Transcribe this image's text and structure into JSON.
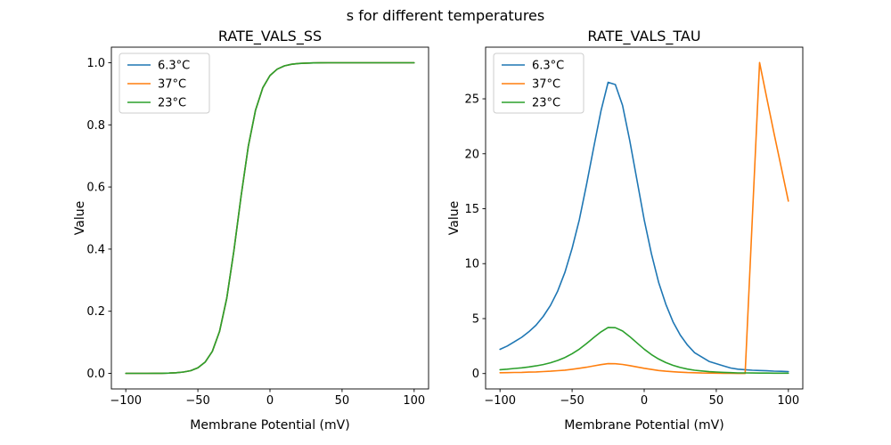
{
  "figure_title": "s for different temperatures",
  "colors": {
    "blue": "#1f77b4",
    "orange": "#ff7f0e",
    "green": "#2ca02c"
  },
  "chart_data": [
    {
      "type": "line",
      "title": "RATE_VALS_SS",
      "xlabel": "Membrane Potential (mV)",
      "ylabel": "Value",
      "xlim": [
        -110,
        110
      ],
      "ylim": [
        -0.05,
        1.05
      ],
      "xticks": [
        -100,
        -50,
        0,
        50,
        100
      ],
      "xticklabels": [
        "−100",
        "−50",
        "0",
        "50",
        "100"
      ],
      "yticks": [
        0.0,
        0.2,
        0.4,
        0.6,
        0.8,
        1.0
      ],
      "yticklabels": [
        "0.0",
        "0.2",
        "0.4",
        "0.6",
        "0.8",
        "1.0"
      ],
      "legend_position": "upper-left",
      "grid": false,
      "note": "All three temperature curves overlap exactly (identical sigmoid); green drawn last is visible",
      "x": [
        -100,
        -95,
        -90,
        -85,
        -80,
        -75,
        -70,
        -65,
        -60,
        -55,
        -50,
        -45,
        -40,
        -35,
        -30,
        -25,
        -20,
        -15,
        -10,
        -5,
        0,
        5,
        10,
        15,
        20,
        25,
        30,
        35,
        40,
        45,
        50,
        55,
        60,
        65,
        70,
        75,
        80,
        85,
        90,
        95,
        100
      ],
      "series": [
        {
          "name": "6.3°C",
          "color": "#1f77b4",
          "values": [
            0.0,
            0.0,
            0.0001,
            0.0001,
            0.0003,
            0.0005,
            0.001,
            0.0021,
            0.0043,
            0.0088,
            0.018,
            0.0361,
            0.071,
            0.135,
            0.2418,
            0.3945,
            0.5709,
            0.7311,
            0.8475,
            0.919,
            0.9586,
            0.9793,
            0.9898,
            0.995,
            0.9976,
            0.9988,
            0.9994,
            0.9997,
            0.9999,
            0.9999,
            1.0,
            1.0,
            1.0,
            1.0,
            1.0,
            1.0,
            1.0,
            1.0,
            1.0,
            1.0,
            1.0
          ]
        },
        {
          "name": "37°C",
          "color": "#ff7f0e",
          "values": [
            0.0,
            0.0,
            0.0001,
            0.0001,
            0.0003,
            0.0005,
            0.001,
            0.0021,
            0.0043,
            0.0088,
            0.018,
            0.0361,
            0.071,
            0.135,
            0.2418,
            0.3945,
            0.5709,
            0.7311,
            0.8475,
            0.919,
            0.9586,
            0.9793,
            0.9898,
            0.995,
            0.9976,
            0.9988,
            0.9994,
            0.9997,
            0.9999,
            0.9999,
            1.0,
            1.0,
            1.0,
            1.0,
            1.0,
            1.0,
            1.0,
            1.0,
            1.0,
            1.0,
            1.0
          ]
        },
        {
          "name": "23°C",
          "color": "#2ca02c",
          "values": [
            0.0,
            0.0,
            0.0001,
            0.0001,
            0.0003,
            0.0005,
            0.001,
            0.0021,
            0.0043,
            0.0088,
            0.018,
            0.0361,
            0.071,
            0.135,
            0.2418,
            0.3945,
            0.5709,
            0.7311,
            0.8475,
            0.919,
            0.9586,
            0.9793,
            0.9898,
            0.995,
            0.9976,
            0.9988,
            0.9994,
            0.9997,
            0.9999,
            0.9999,
            1.0,
            1.0,
            1.0,
            1.0,
            1.0,
            1.0,
            1.0,
            1.0,
            1.0,
            1.0,
            1.0
          ]
        }
      ]
    },
    {
      "type": "line",
      "title": "RATE_VALS_TAU",
      "xlabel": "Membrane Potential (mV)",
      "ylabel": "Value",
      "xlim": [
        -110,
        110
      ],
      "ylim": [
        -1.4,
        29.7
      ],
      "xticks": [
        -100,
        -50,
        0,
        50,
        100
      ],
      "xticklabels": [
        "−100",
        "−50",
        "0",
        "50",
        "100"
      ],
      "yticks": [
        0,
        5,
        10,
        15,
        20,
        25
      ],
      "yticklabels": [
        "0",
        "5",
        "10",
        "15",
        "20",
        "25"
      ],
      "legend_position": "upper-left",
      "grid": false,
      "note": "Orange 37°C curve has an abrupt spike near +75 mV peaking ~28.3 then falling to ~15.7 at +100 mV",
      "x": [
        -100,
        -95,
        -90,
        -85,
        -80,
        -75,
        -70,
        -65,
        -60,
        -55,
        -50,
        -45,
        -40,
        -35,
        -30,
        -25,
        -20,
        -15,
        -10,
        -5,
        0,
        5,
        10,
        15,
        20,
        25,
        30,
        35,
        40,
        45,
        50,
        55,
        60,
        65,
        70,
        75,
        80,
        85,
        90,
        95,
        100
      ],
      "series": [
        {
          "name": "6.3°C",
          "color": "#1f77b4",
          "values": [
            2.2,
            2.5,
            2.9,
            3.3,
            3.8,
            4.4,
            5.2,
            6.2,
            7.5,
            9.2,
            11.4,
            14.0,
            17.2,
            20.6,
            23.9,
            26.5,
            26.3,
            24.4,
            21.2,
            17.6,
            14.0,
            10.9,
            8.3,
            6.3,
            4.7,
            3.5,
            2.6,
            1.9,
            1.5,
            1.1,
            0.9,
            0.7,
            0.5,
            0.4,
            0.35,
            0.3,
            0.28,
            0.25,
            0.22,
            0.2,
            0.18
          ]
        },
        {
          "name": "37°C",
          "color": "#ff7f0e",
          "values": [
            0.07,
            0.08,
            0.1,
            0.11,
            0.13,
            0.15,
            0.18,
            0.21,
            0.26,
            0.31,
            0.39,
            0.48,
            0.58,
            0.7,
            0.81,
            0.9,
            0.89,
            0.83,
            0.72,
            0.6,
            0.48,
            0.37,
            0.28,
            0.21,
            0.16,
            0.12,
            0.09,
            0.07,
            0.05,
            0.04,
            0.03,
            0.02,
            0.02,
            0.01,
            0.01,
            14.2,
            28.3,
            25.1,
            21.9,
            18.8,
            15.7
          ]
        },
        {
          "name": "23°C",
          "color": "#2ca02c",
          "values": [
            0.35,
            0.4,
            0.46,
            0.52,
            0.6,
            0.7,
            0.82,
            0.98,
            1.19,
            1.46,
            1.81,
            2.22,
            2.73,
            3.27,
            3.79,
            4.2,
            4.17,
            3.87,
            3.36,
            2.79,
            2.22,
            1.73,
            1.32,
            1.0,
            0.75,
            0.55,
            0.41,
            0.3,
            0.24,
            0.17,
            0.14,
            0.11,
            0.08,
            0.06,
            0.06,
            0.05,
            0.04,
            0.04,
            0.03,
            0.03,
            0.03
          ]
        }
      ]
    }
  ]
}
